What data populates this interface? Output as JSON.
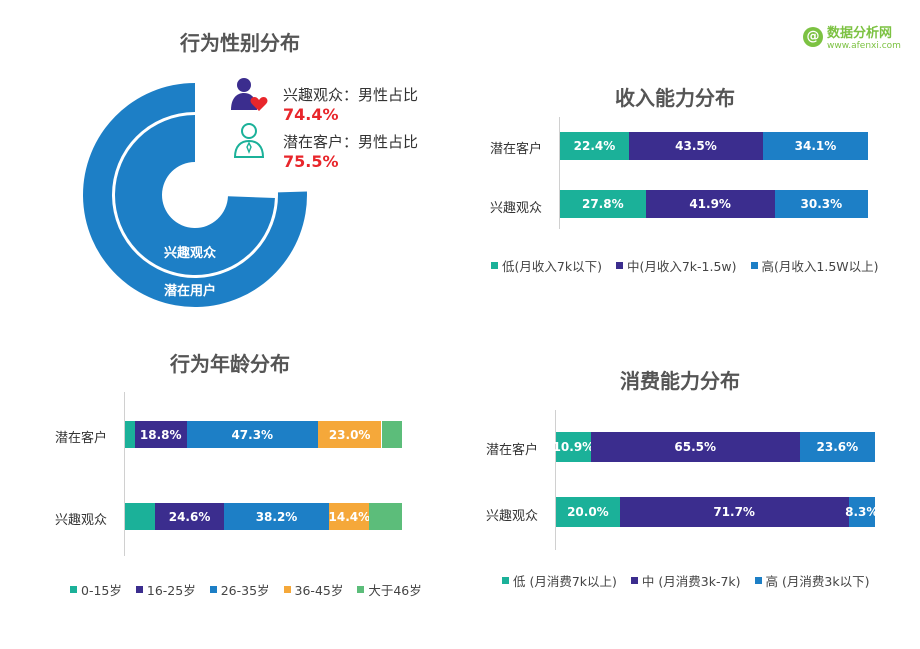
{
  "watermark": {
    "logo_letter": "@",
    "name": "数据分析网",
    "url": "www.afenxi.com"
  },
  "colors": {
    "teal": "#1bb199",
    "purple": "#3b2d8e",
    "blue": "#1d7fc6",
    "orange": "#f5a83a",
    "green": "#5cbd7a",
    "red": "#e8262b"
  },
  "chart_data": [
    {
      "id": "gender",
      "type": "pie",
      "title": "行为性别分布",
      "rings": [
        {
          "name": "兴趣观众",
          "value": 74.4
        },
        {
          "name": "潜在用户",
          "value": 75.5
        }
      ],
      "annotations": [
        {
          "icon": "female-heart-icon",
          "text": "兴趣观众：男性占比",
          "value": "74.4%"
        },
        {
          "icon": "male-outline-icon",
          "text": "潜在客户：男性占比",
          "value": "75.5%"
        }
      ]
    },
    {
      "id": "income",
      "type": "bar",
      "orientation": "horizontal-stacked-100",
      "title": "收入能力分布",
      "categories": [
        "潜在客户",
        "兴趣观众"
      ],
      "series": [
        {
          "name": "低(月收入7k以下)",
          "color": "#1bb199",
          "values": [
            22.4,
            27.8
          ]
        },
        {
          "name": "中(月收入7k-1.5w)",
          "color": "#3b2d8e",
          "values": [
            43.5,
            41.9
          ]
        },
        {
          "name": "高(月收入1.5W以上)",
          "color": "#1d7fc6",
          "values": [
            34.1,
            30.3
          ]
        }
      ]
    },
    {
      "id": "age",
      "type": "bar",
      "orientation": "horizontal-stacked-100",
      "title": "行为年龄分布",
      "categories": [
        "潜在客户",
        "兴趣观众"
      ],
      "series": [
        {
          "name": "0-15岁",
          "color": "#1bb199",
          "values": [
            3.5,
            11.0
          ],
          "labels": [
            "",
            ""
          ]
        },
        {
          "name": "16-25岁",
          "color": "#3b2d8e",
          "values": [
            18.8,
            24.6
          ],
          "labels": [
            "18.8%",
            "24.6%"
          ]
        },
        {
          "name": "26-35岁",
          "color": "#1d7fc6",
          "values": [
            47.3,
            38.2
          ],
          "labels": [
            "47.3%",
            "38.2%"
          ]
        },
        {
          "name": "36-45岁",
          "color": "#f5a83a",
          "values": [
            23.0,
            14.4
          ],
          "labels": [
            "23.0%",
            "14.4%"
          ]
        },
        {
          "name": "大于46岁",
          "color": "#5cbd7a",
          "values": [
            7.4,
            11.8
          ],
          "labels": [
            "",
            ""
          ]
        }
      ]
    },
    {
      "id": "consume",
      "type": "bar",
      "orientation": "horizontal-stacked-100",
      "title": "消费能力分布",
      "categories": [
        "潜在客户",
        "兴趣观众"
      ],
      "series": [
        {
          "name": "低 (月消费7k以上)",
          "color": "#1bb199",
          "values": [
            10.9,
            20.0
          ]
        },
        {
          "name": "中 (月消费3k-7k)",
          "color": "#3b2d8e",
          "values": [
            65.5,
            71.7
          ]
        },
        {
          "name": "高 (月消费3k以下)",
          "color": "#1d7fc6",
          "values": [
            23.6,
            8.3
          ]
        }
      ]
    }
  ]
}
